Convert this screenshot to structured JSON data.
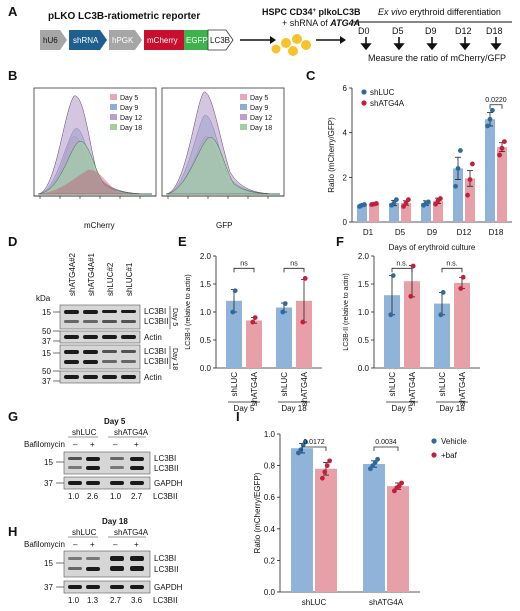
{
  "colors": {
    "blue": "#8fb3d9",
    "pink": "#e8a0a8",
    "blue_dot": "#2d6aa0",
    "red_dot": "#c41e3a",
    "hist_day5": "#e8a6b8",
    "hist_day9": "#8aaed4",
    "hist_day12": "#b8a0cc",
    "hist_day18": "#a0d0a0",
    "hu6": "#a6a6a6",
    "shrna": "#1f5f8f",
    "hpgk": "#a6a6a6",
    "mcherry": "#c8102e",
    "egfp": "#3cb44b",
    "gold": "#f6c32c"
  },
  "panel_labels": [
    "A",
    "B",
    "C",
    "D",
    "E",
    "F",
    "G",
    "H",
    "I"
  ],
  "panelA": {
    "construct_title": "pLKO LC3B-ratiometric reporter",
    "boxes": [
      "hU6",
      "shRNA",
      "hPGK",
      "mCherry",
      "EGFP",
      "LC3B"
    ],
    "cells_line1": "HSPC CD34",
    "cells_sup": "+",
    "cells_line1b": " plkoLC3B",
    "cells_line2a": "+ shRNA of ",
    "cells_line2b": "ATG4A",
    "exvivo_italic": "Ex vivo",
    "exvivo_rest": " erythroid differentiation",
    "days": [
      "D0",
      "D5",
      "D9",
      "D12",
      "D18"
    ],
    "measure": "Measure the ratio of mCherry/GFP"
  },
  "panelB": {
    "xlabels": [
      "mCherry",
      "GFP"
    ],
    "legend": [
      "Day 5",
      "Day 9",
      "Day 12",
      "Day 18"
    ]
  },
  "panelD": {
    "kda": "kDa",
    "lanes": [
      "shATG4A#2",
      "shATG4A#1",
      "shLUC#2",
      "shLUC#1"
    ],
    "markers": [
      "15",
      "50",
      "37",
      "15",
      "50",
      "37"
    ],
    "labels": [
      "LC3BI",
      "LC3BII",
      "Actin",
      "LC3BI",
      "LC3BII",
      "Actin"
    ],
    "day_tags": [
      "Day 5",
      "Day 18"
    ]
  },
  "panelE": {
    "ns1": "ns",
    "ns2": "ns",
    "groups": [
      "Day 5",
      "Day 18"
    ]
  },
  "panelF": {
    "ns1": "n.s.",
    "ns2": "n.s.",
    "groups": [
      "Day 5",
      "Day 18"
    ]
  },
  "panelG": {
    "title": "Day 5",
    "treatment": "Bafilomycin",
    "groups": [
      "shLUC",
      "shATG4A"
    ],
    "signs": [
      "–",
      "+",
      "–",
      "+"
    ],
    "markers": [
      "15",
      "37"
    ],
    "labels": [
      "LC3BI",
      "LC3BII",
      "GAPDH"
    ],
    "quant": [
      "1.0",
      "2.6",
      "1.0",
      "2.7"
    ],
    "quant_label": "LC3BII"
  },
  "panelH": {
    "title": "Day 18",
    "treatment": "Bafilomycin",
    "groups": [
      "shLUC",
      "shATG4A"
    ],
    "signs": [
      "–",
      "+",
      "–",
      "+"
    ],
    "markers": [
      "15",
      "37"
    ],
    "labels": [
      "LC3BI",
      "LC3BII",
      "GAPDH"
    ],
    "quant": [
      "1.0",
      "1.3",
      "2.7",
      "3.6"
    ],
    "quant_label": "LC3BII"
  },
  "chart_data": [
    {
      "panel": "C",
      "type": "bar",
      "ylabel": "Ratio (mCherry/GFP)",
      "xlabel": "Days of erythroid culture",
      "categories": [
        "D1",
        "D5",
        "D9",
        "D12",
        "D18"
      ],
      "ylim": [
        0,
        6
      ],
      "yticks": [
        "0",
        "2",
        "4",
        "6"
      ],
      "series": [
        {
          "name": "shLUC",
          "values": [
            0.75,
            0.85,
            0.85,
            2.4,
            4.6
          ],
          "err": [
            0.05,
            0.12,
            0.1,
            0.5,
            0.3
          ],
          "points": [
            [
              0.7,
              0.75,
              0.78
            ],
            [
              0.75,
              0.85,
              1.0
            ],
            [
              0.75,
              0.85,
              0.9
            ],
            [
              1.6,
              2.4,
              3.2
            ],
            [
              4.3,
              4.6,
              5.0
            ]
          ]
        },
        {
          "name": "shATG4A",
          "values": [
            0.8,
            0.85,
            0.95,
            1.95,
            3.35
          ],
          "err": [
            0.05,
            0.1,
            0.12,
            0.35,
            0.2
          ],
          "points": [
            [
              0.78,
              0.8,
              0.83
            ],
            [
              0.7,
              0.85,
              1.0
            ],
            [
              0.8,
              0.95,
              1.05
            ],
            [
              1.2,
              1.9,
              2.6
            ],
            [
              3.0,
              3.3,
              3.6
            ]
          ]
        }
      ],
      "annotations": [
        {
          "category": "D18",
          "text": "0.0220"
        }
      ]
    },
    {
      "panel": "E",
      "type": "bar",
      "ylabel": "LC3B-I (relative to actin)",
      "categories": [
        "shLUC",
        "shATG4A",
        "shLUC",
        "shATG4A"
      ],
      "ylim": [
        0,
        2.0
      ],
      "yticks": [
        "0.0",
        "0.5",
        "1.0",
        "1.5",
        "2.0"
      ],
      "values": [
        1.2,
        0.85,
        1.08,
        1.2
      ],
      "err": [
        0.2,
        0.05,
        0.08,
        0.38
      ],
      "points": [
        [
          1.0,
          1.38
        ],
        [
          0.82,
          0.9
        ],
        [
          1.0,
          1.15
        ],
        [
          0.82,
          1.6
        ]
      ]
    },
    {
      "panel": "F",
      "type": "bar",
      "ylabel": "LC3B-II (relative to actin)",
      "categories": [
        "shLUC",
        "shATG4A",
        "shLUC",
        "shATG4A"
      ],
      "ylim": [
        0.0,
        2.0
      ],
      "yticks": [
        "0.0",
        "0.5",
        "1.0",
        "1.5",
        "2.0"
      ],
      "values": [
        1.3,
        1.55,
        1.15,
        1.52
      ],
      "err": [
        0.35,
        0.28,
        0.2,
        0.1
      ],
      "points": [
        [
          0.95,
          1.65
        ],
        [
          1.28,
          1.82
        ],
        [
          0.95,
          1.35
        ],
        [
          1.42,
          1.62
        ]
      ]
    },
    {
      "panel": "I",
      "type": "bar",
      "ylabel": "Ratio (mCherry/EGFP)",
      "categories": [
        "shLUC",
        "shATG4A"
      ],
      "ylim": [
        0.0,
        1.0
      ],
      "yticks": [
        "0.0",
        "0.2",
        "0.4",
        "0.6",
        "0.8",
        "1.0"
      ],
      "series": [
        {
          "name": "Vehicle",
          "values": [
            0.91,
            0.81
          ],
          "err": [
            0.03,
            0.02
          ],
          "points": [
            [
              0.88,
              0.9,
              0.93,
              0.95
            ],
            [
              0.78,
              0.8,
              0.82,
              0.84
            ]
          ]
        },
        {
          "name": "+baf",
          "values": [
            0.78,
            0.67
          ],
          "err": [
            0.04,
            0.02
          ],
          "points": [
            [
              0.72,
              0.76,
              0.8,
              0.83
            ],
            [
              0.64,
              0.66,
              0.67,
              0.69
            ]
          ]
        }
      ],
      "annotations": [
        {
          "group": "shLUC",
          "text": "0.0172"
        },
        {
          "group": "shATG4A",
          "text": "0.0034"
        }
      ]
    }
  ]
}
